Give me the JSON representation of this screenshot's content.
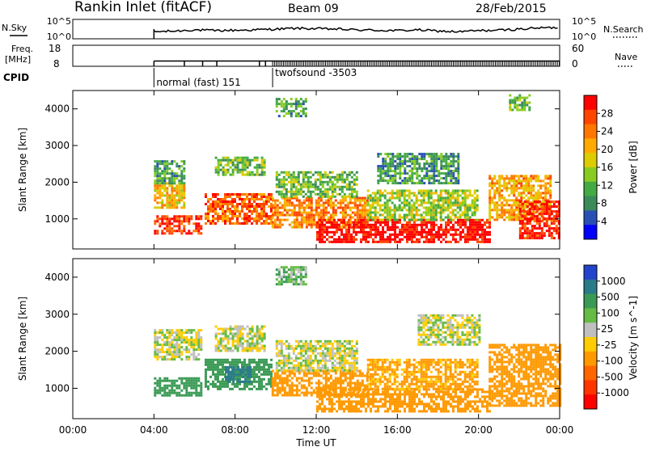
{
  "header": {
    "station": "Rankin Inlet (fitACF)",
    "beam": "Beam 09",
    "date": "28/Feb/2015"
  },
  "top_panels": {
    "nsky_label": "N.Sky",
    "nsky_ticks": [
      "10^5",
      "10^0"
    ],
    "nsearch_ticks": [
      "10^5",
      "10^0"
    ],
    "nsearch_label": "N.Search",
    "freq_label_line1": "Freq.",
    "freq_label_line2": "[MHz]",
    "freq_ticks": [
      "18",
      "8"
    ],
    "nave_ticks": [
      "60",
      "0"
    ],
    "nave_label": "Nave",
    "cpid_label": "CPID",
    "cpid_modes": [
      {
        "name": "normal (fast) 151",
        "start_hour": 4.0
      },
      {
        "name": "twofsound -3503",
        "start_hour": 9.85
      }
    ]
  },
  "axes": {
    "ylabel": "Slant Range [km]",
    "xlabel": "Time UT",
    "x_ticks": [
      "00:00",
      "04:00",
      "08:00",
      "12:00",
      "16:00",
      "20:00",
      "00:00"
    ],
    "y_ticks": [
      "1000",
      "2000",
      "3000",
      "4000"
    ]
  },
  "colorbars": {
    "power": {
      "label": "Power [dB]",
      "ticks": [
        "28",
        "24",
        "20",
        "16",
        "12",
        "8",
        "4"
      ],
      "colors": [
        "#0000ff",
        "#2850b4",
        "#3a8a5a",
        "#44aa44",
        "#88cc22",
        "#ddcc00",
        "#ffaa00",
        "#ff7700",
        "#ff4400",
        "#ff0000"
      ]
    },
    "velocity": {
      "label": "Velocity [m s^-1]",
      "ticks": [
        "1000",
        "500",
        "100",
        "25",
        "-25",
        "-100",
        "-500",
        "-1000"
      ],
      "colors": [
        "#2244cc",
        "#2a7a8a",
        "#3a9a55",
        "#66bb44",
        "#bfbfbf",
        "#ffcc00",
        "#ff9900",
        "#ff6600",
        "#ff3300",
        "#ff0000"
      ]
    }
  },
  "chart_data": [
    {
      "type": "line",
      "title": "N.Sky / N.Search",
      "xlim": [
        0,
        24
      ],
      "ylim_log10": [
        0,
        5
      ],
      "x": [
        4.0,
        5.0,
        6.0,
        7.0,
        8.0,
        9.0,
        10.0,
        11.0,
        12.0,
        13.0,
        14.0,
        15.0,
        16.0,
        17.0,
        18.0,
        19.0,
        20.0,
        21.0,
        22.0,
        23.0,
        24.0
      ],
      "series": [
        {
          "name": "N.Sky",
          "values_log10": [
            1.8,
            2.0,
            2.3,
            2.1,
            2.2,
            2.3,
            2.5,
            2.7,
            2.6,
            2.5,
            2.3,
            2.2,
            2.1,
            2.3,
            2.0,
            1.8,
            2.1,
            2.2,
            2.5,
            2.8,
            2.9
          ]
        }
      ]
    },
    {
      "type": "line",
      "title": "Freq / Nave",
      "xlim": [
        0,
        24
      ],
      "ylim": [
        8,
        18
      ],
      "x": [
        4.0,
        9.85,
        24.0
      ],
      "series": [
        {
          "name": "Freq.",
          "values": [
            10.5,
            10.5,
            10.5
          ]
        }
      ]
    },
    {
      "type": "heatmap",
      "ylabel": "Slant Range [km]",
      "xlabel": "Time UT",
      "colorbar_label": "Power [dB]",
      "xlim": [
        0,
        24
      ],
      "ylim": [
        180,
        4500
      ],
      "clim": [
        0,
        30
      ],
      "blobs": [
        {
          "t0": 4.0,
          "t1": 6.3,
          "r0": 600,
          "r1": 1100,
          "value": 27
        },
        {
          "t0": 4.0,
          "t1": 5.5,
          "r0": 1300,
          "r1": 2000,
          "value": 18
        },
        {
          "t0": 4.0,
          "t1": 5.5,
          "r0": 2000,
          "r1": 2600,
          "value": 10
        },
        {
          "t0": 6.5,
          "t1": 9.8,
          "r0": 900,
          "r1": 1700,
          "value": 24
        },
        {
          "t0": 7.0,
          "t1": 9.5,
          "r0": 2200,
          "r1": 2700,
          "value": 12
        },
        {
          "t0": 9.8,
          "t1": 14.5,
          "r0": 800,
          "r1": 1600,
          "value": 22
        },
        {
          "t0": 10.0,
          "t1": 14.0,
          "r0": 1600,
          "r1": 2300,
          "value": 12
        },
        {
          "t0": 12.0,
          "t1": 20.5,
          "r0": 400,
          "r1": 1000,
          "value": 29
        },
        {
          "t0": 14.5,
          "t1": 20.0,
          "r0": 1000,
          "r1": 1800,
          "value": 14
        },
        {
          "t0": 15.0,
          "t1": 19.0,
          "r0": 2000,
          "r1": 2800,
          "value": 9
        },
        {
          "t0": 20.5,
          "t1": 23.5,
          "r0": 1000,
          "r1": 2200,
          "value": 20
        },
        {
          "t0": 22.0,
          "t1": 24.0,
          "r0": 500,
          "r1": 1500,
          "value": 28
        },
        {
          "t0": 10.0,
          "t1": 11.5,
          "r0": 3800,
          "r1": 4300,
          "value": 10
        },
        {
          "t0": 21.5,
          "t1": 22.5,
          "r0": 4000,
          "r1": 4400,
          "value": 12
        }
      ]
    },
    {
      "type": "heatmap",
      "ylabel": "Slant Range [km]",
      "xlabel": "Time UT",
      "colorbar_label": "Velocity [m s^-1]",
      "xlim": [
        0,
        24
      ],
      "ylim": [
        180,
        4500
      ],
      "blobs": [
        {
          "t0": 4.0,
          "t1": 6.3,
          "r0": 800,
          "r1": 1300,
          "value": 300
        },
        {
          "t0": 4.0,
          "t1": 6.3,
          "r0": 1800,
          "r1": 2600,
          "value": 0
        },
        {
          "t0": 6.5,
          "t1": 9.8,
          "r0": 1000,
          "r1": 1800,
          "value": 200
        },
        {
          "t0": 7.5,
          "t1": 8.8,
          "r0": 1200,
          "r1": 1600,
          "value": 800
        },
        {
          "t0": 7.0,
          "t1": 9.5,
          "r0": 2000,
          "r1": 2700,
          "value": 0
        },
        {
          "t0": 9.8,
          "t1": 14.5,
          "r0": 800,
          "r1": 1500,
          "value": -200
        },
        {
          "t0": 10.0,
          "t1": 14.0,
          "r0": 1500,
          "r1": 2300,
          "value": 0
        },
        {
          "t0": 12.0,
          "t1": 20.5,
          "r0": 400,
          "r1": 1000,
          "value": -300
        },
        {
          "t0": 14.5,
          "t1": 20.0,
          "r0": 1000,
          "r1": 1800,
          "value": -150
        },
        {
          "t0": 20.5,
          "t1": 24.0,
          "r0": 500,
          "r1": 2200,
          "value": -400
        },
        {
          "t0": 17.0,
          "t1": 20.0,
          "r0": 2200,
          "r1": 3000,
          "value": 0
        },
        {
          "t0": 10.0,
          "t1": 11.5,
          "r0": 3800,
          "r1": 4300,
          "value": 80
        }
      ]
    }
  ]
}
